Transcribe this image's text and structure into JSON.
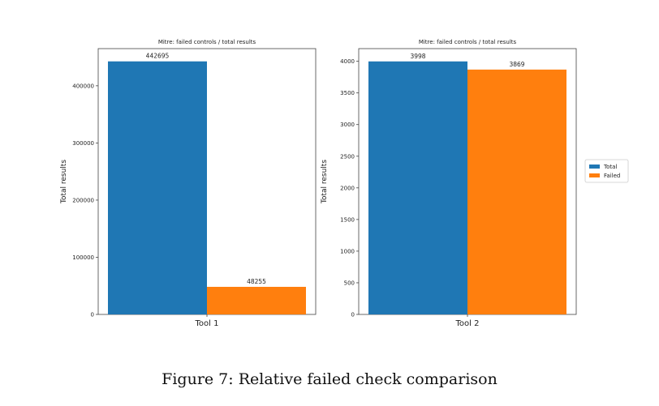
{
  "figure_caption": "Figure 7: Relative failed check comparison",
  "colors": {
    "total": "#1f77b4",
    "failed": "#ff7f0e"
  },
  "legend": {
    "placement": "right",
    "entries": [
      "Total",
      "Failed"
    ]
  },
  "chart_data": [
    {
      "type": "bar",
      "title": "Mitre: failed controls / total results",
      "ylabel": "Total results",
      "xlabel": "Tool 1",
      "ylim": [
        0,
        465000
      ],
      "yticks": [
        0,
        100000,
        200000,
        300000,
        400000
      ],
      "series": [
        {
          "name": "Total",
          "values": [
            442695
          ]
        },
        {
          "name": "Failed",
          "values": [
            48255
          ]
        }
      ],
      "grid": false
    },
    {
      "type": "bar",
      "title": "Mitre: failed controls / total results",
      "ylabel": "Total results",
      "xlabel": "Tool 2",
      "ylim": [
        0,
        4200
      ],
      "yticks": [
        0,
        500,
        1000,
        1500,
        2000,
        2500,
        3000,
        3500,
        4000
      ],
      "series": [
        {
          "name": "Total",
          "values": [
            3998
          ]
        },
        {
          "name": "Failed",
          "values": [
            3869
          ]
        }
      ],
      "grid": false
    }
  ]
}
